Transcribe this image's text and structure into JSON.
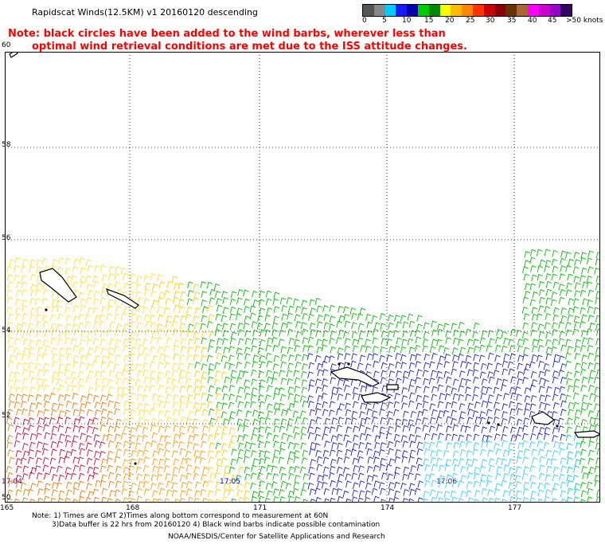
{
  "title": "Rapidscat Winds(12.5KM)  v1  20160120  descending",
  "note_line1": "Note: black circles have been added to the wind barbs, wherever less than",
  "note_line2": "optimal wind retrieval conditions are met due to the ISS attitude changes.",
  "legend": {
    "colors": [
      "#555555",
      "#888888",
      "#00ccff",
      "#1a1aff",
      "#0000aa",
      "#00cc00",
      "#008800",
      "#ffff00",
      "#ffbb00",
      "#ff8800",
      "#ff3300",
      "#cc0000",
      "#880000",
      "#663300",
      "#aa6633",
      "#ff00ff",
      "#cc00cc",
      "#9900cc",
      "#330066"
    ],
    "labels": [
      "0",
      "5",
      "10",
      "15",
      "20",
      "25",
      "30",
      "35",
      "40",
      "45",
      ">50 knots"
    ]
  },
  "map": {
    "lat_labels": [
      "60",
      "58",
      "56",
      "54",
      "52",
      "50"
    ],
    "lon_labels": [
      "165",
      "168",
      "171",
      "174",
      "177"
    ],
    "time_labels": [
      "17:04",
      "17:05",
      "17:06"
    ]
  },
  "footer": {
    "line1": "Note: 1) Times are GMT 2)Times along bottom correspond to measurement at 60N",
    "line2": "3)Data buffer is 22 hrs from 20160120 4) Black wind barbs indicate possible contamination",
    "credit": "NOAA/NESDIS/Center for Satellite Applications and Research"
  }
}
